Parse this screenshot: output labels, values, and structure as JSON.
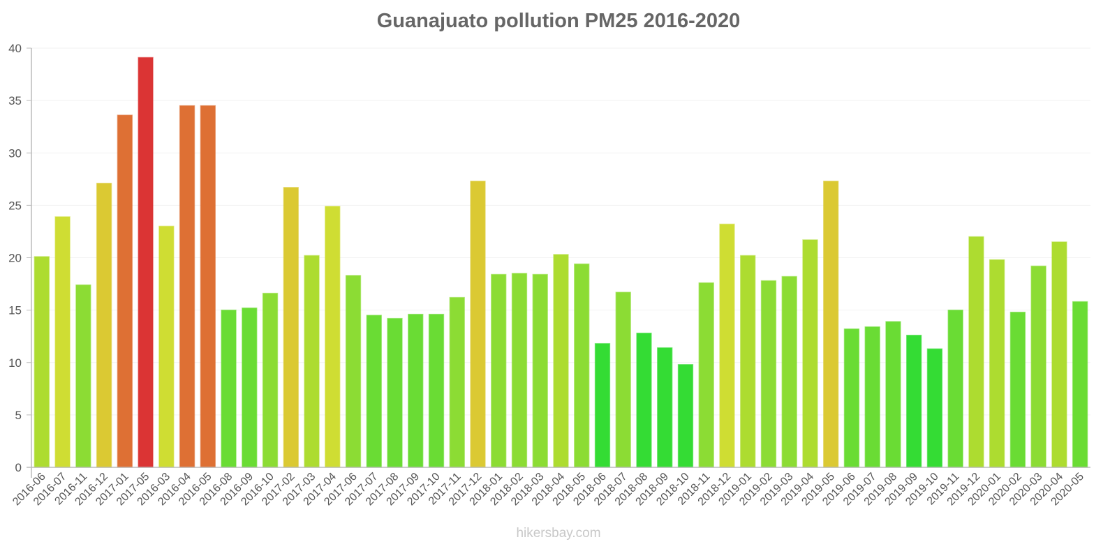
{
  "title": "Guanajuato pollution PM25 2016-2020",
  "watermark": "hikersbay.com",
  "colors": {
    "axis": "#bbbbbb",
    "grid": "#f2f2f2",
    "text": "#555555",
    "title": "#666666"
  },
  "chart_data": {
    "type": "bar",
    "title": "Guanajuato pollution PM25 2016-2020",
    "xlabel": "",
    "ylabel": "",
    "ylim": [
      0,
      40
    ],
    "yticks": [
      0,
      5,
      10,
      15,
      20,
      25,
      30,
      35,
      40
    ],
    "grid": true,
    "legend": null,
    "categories": [
      "2016-06",
      "2016-07",
      "2016-11",
      "2016-12",
      "2017-01",
      "2017-05",
      "2016-03",
      "2016-04",
      "2016-05",
      "2016-08",
      "2016-09",
      "2016-10",
      "2017-02",
      "2017-03",
      "2017-04",
      "2017-06",
      "2017-07",
      "2017-08",
      "2017-09",
      "2017-10",
      "2017-11",
      "2017-12",
      "2018-01",
      "2018-02",
      "2018-03",
      "2018-04",
      "2018-05",
      "2018-06",
      "2018-07",
      "2018-08",
      "2018-09",
      "2018-10",
      "2018-11",
      "2018-12",
      "2019-01",
      "2019-02",
      "2019-03",
      "2019-04",
      "2019-05",
      "2019-06",
      "2019-07",
      "2019-08",
      "2019-09",
      "2019-10",
      "2019-11",
      "2019-12",
      "2020-01",
      "2020-02",
      "2020-03",
      "2020-04",
      "2020-05"
    ],
    "values": [
      20.1,
      23.9,
      17.4,
      27.1,
      33.6,
      39.1,
      23.0,
      34.5,
      34.5,
      15.0,
      15.2,
      16.6,
      26.7,
      20.2,
      24.9,
      18.3,
      14.5,
      14.2,
      14.6,
      14.6,
      16.2,
      27.3,
      18.4,
      18.5,
      18.4,
      20.3,
      19.4,
      11.8,
      16.7,
      12.8,
      11.4,
      9.8,
      17.6,
      23.2,
      20.2,
      17.8,
      18.2,
      21.7,
      27.3,
      13.2,
      13.4,
      13.9,
      12.6,
      11.3,
      15.0,
      22.0,
      19.8,
      14.8,
      19.2,
      21.5,
      15.8
    ],
    "bar_colors": [
      "#addc30",
      "#cfdd33",
      "#8cdc34",
      "#dbc933",
      "#de7034",
      "#db3434",
      "#cfdd33",
      "#de7034",
      "#de7034",
      "#6adc34",
      "#6adc34",
      "#8cdc34",
      "#dbc933",
      "#addc30",
      "#cfdd33",
      "#8cdc34",
      "#6adc34",
      "#6adc34",
      "#6adc34",
      "#6adc34",
      "#8cdc34",
      "#dbc933",
      "#8cdc34",
      "#8cdc34",
      "#8cdc34",
      "#addc30",
      "#8cdc34",
      "#34dc34",
      "#8cdc34",
      "#34dc34",
      "#34dc34",
      "#34dc34",
      "#8cdc34",
      "#cfdd33",
      "#addc30",
      "#8cdc34",
      "#8cdc34",
      "#addc30",
      "#dbc933",
      "#6adc34",
      "#6adc34",
      "#6adc34",
      "#34dc34",
      "#34dc34",
      "#6adc34",
      "#addc30",
      "#addc30",
      "#6adc34",
      "#8cdc34",
      "#addc30",
      "#6adc34"
    ]
  }
}
